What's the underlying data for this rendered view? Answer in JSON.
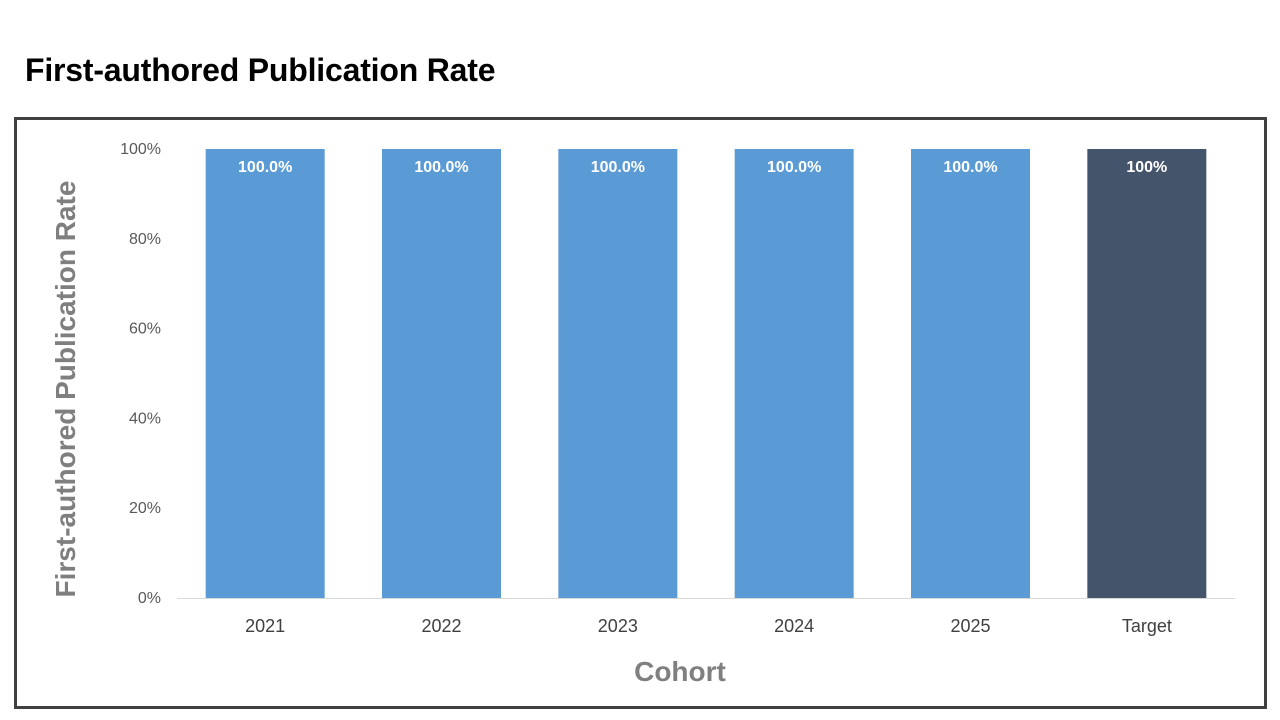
{
  "page": {
    "title": "First-authored Publication Rate"
  },
  "chart_data": {
    "type": "bar",
    "title": "",
    "categories": [
      "2021",
      "2022",
      "2023",
      "2024",
      "2025",
      "Target"
    ],
    "values": [
      100.0,
      100.0,
      100.0,
      100.0,
      100.0,
      100
    ],
    "data_labels": [
      "100.0%",
      "100.0%",
      "100.0%",
      "100.0%",
      "100.0%",
      "100%"
    ],
    "bar_colors": [
      "#5b9bd5",
      "#5b9bd5",
      "#5b9bd5",
      "#5b9bd5",
      "#5b9bd5",
      "#44546a"
    ],
    "xlabel": "Cohort",
    "ylabel": "First-authored Publication Rate",
    "ylim": [
      0,
      100
    ],
    "yticks": [
      0,
      20,
      40,
      60,
      80,
      100
    ],
    "ytick_labels": [
      "0%",
      "20%",
      "40%",
      "60%",
      "80%",
      "100%"
    ],
    "grid": false,
    "legend": "none"
  }
}
